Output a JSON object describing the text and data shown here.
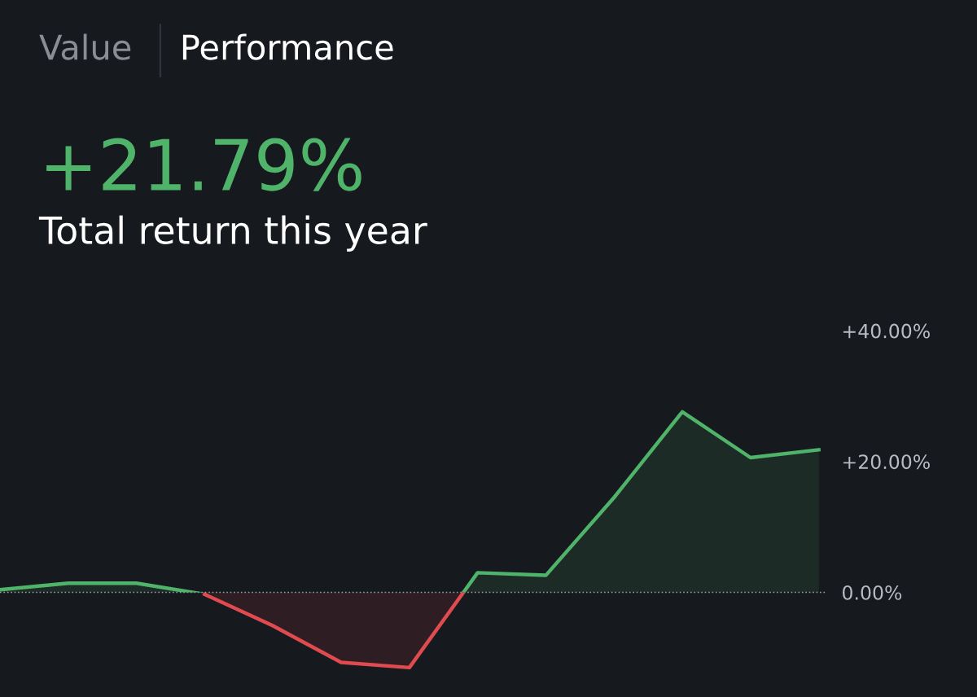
{
  "chart_data": {
    "type": "area",
    "title": "+21.79%",
    "subtitle": "Total return this year",
    "annotations": [
      "Value",
      "Performance"
    ],
    "categories": [
      null,
      null,
      null,
      null,
      null,
      null,
      null,
      null,
      null,
      null,
      null,
      null,
      null
    ],
    "series": [
      {
        "color": "#4fb46a",
        "values": [
          0.4,
          1.4,
          1.4,
          -0.3,
          -5.1,
          -10.7,
          -11.5,
          3.0,
          2.6,
          14.5,
          27.6,
          20.6,
          21.8
        ]
      },
      {
        "color": "#e04b50",
        "values": [
          null,
          null,
          null,
          -0.3,
          -5.1,
          -10.7,
          -11.5,
          3.0,
          null,
          null,
          null,
          null,
          null
        ]
      }
    ],
    "ylim": [
      -16,
      40
    ],
    "yticks": [
      {
        "value": 0,
        "label": "0.00%"
      },
      {
        "value": 20,
        "label": "+20.00%"
      },
      {
        "value": 40,
        "label": "+40.00%"
      }
    ],
    "ref_lines": [
      {
        "axis": "y",
        "value": 0,
        "line_style": "dotted",
        "color": "#9a9ea4"
      }
    ],
    "tick_labels": "y",
    "grid": false
  }
}
